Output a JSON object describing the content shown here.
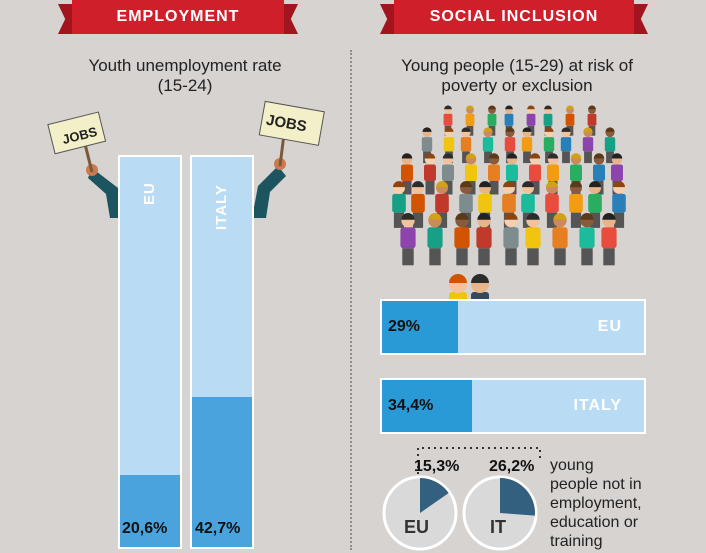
{
  "employment": {
    "banner": "EMPLOYMENT",
    "subtitle_line1": "Youth unemployment rate",
    "subtitle_line2": "(15-24)",
    "sign_text": "JOBS"
  },
  "social": {
    "banner": "SOCIAL INCLUSION",
    "subtitle_line1": "Young people (15-29) at risk of",
    "subtitle_line2": "poverty or exclusion",
    "neet_lines": [
      "young",
      "people not in",
      "employment,",
      "education or",
      "training"
    ]
  },
  "colors": {
    "banner_red": "#cf1f2b",
    "bar_light": "#b9dcf4",
    "bar_fill": "#4aa3dc",
    "hbar_fill": "#2a9ad7",
    "pie_slice": "#33607f",
    "pie_base": "#d9d9d9"
  },
  "chart_data": [
    {
      "type": "bar",
      "title": "Youth unemployment rate (15-24)",
      "categories": [
        "EU",
        "ITALY"
      ],
      "values": [
        20.6,
        42.7
      ],
      "value_labels": [
        "20,6%",
        "42,7%"
      ],
      "ylim": [
        0,
        100
      ]
    },
    {
      "type": "bar",
      "title": "Young people (15-29) at risk of poverty or exclusion",
      "categories": [
        "EU",
        "ITALY"
      ],
      "values": [
        29,
        34.4
      ],
      "value_labels": [
        "29%",
        "34,4%"
      ],
      "xlim": [
        0,
        100
      ]
    },
    {
      "type": "pie",
      "title": "young people not in employment, education or training",
      "categories": [
        "EU",
        "IT"
      ],
      "values": [
        15.3,
        26.2
      ],
      "value_labels": [
        "15,3%",
        "26,2%"
      ]
    }
  ]
}
